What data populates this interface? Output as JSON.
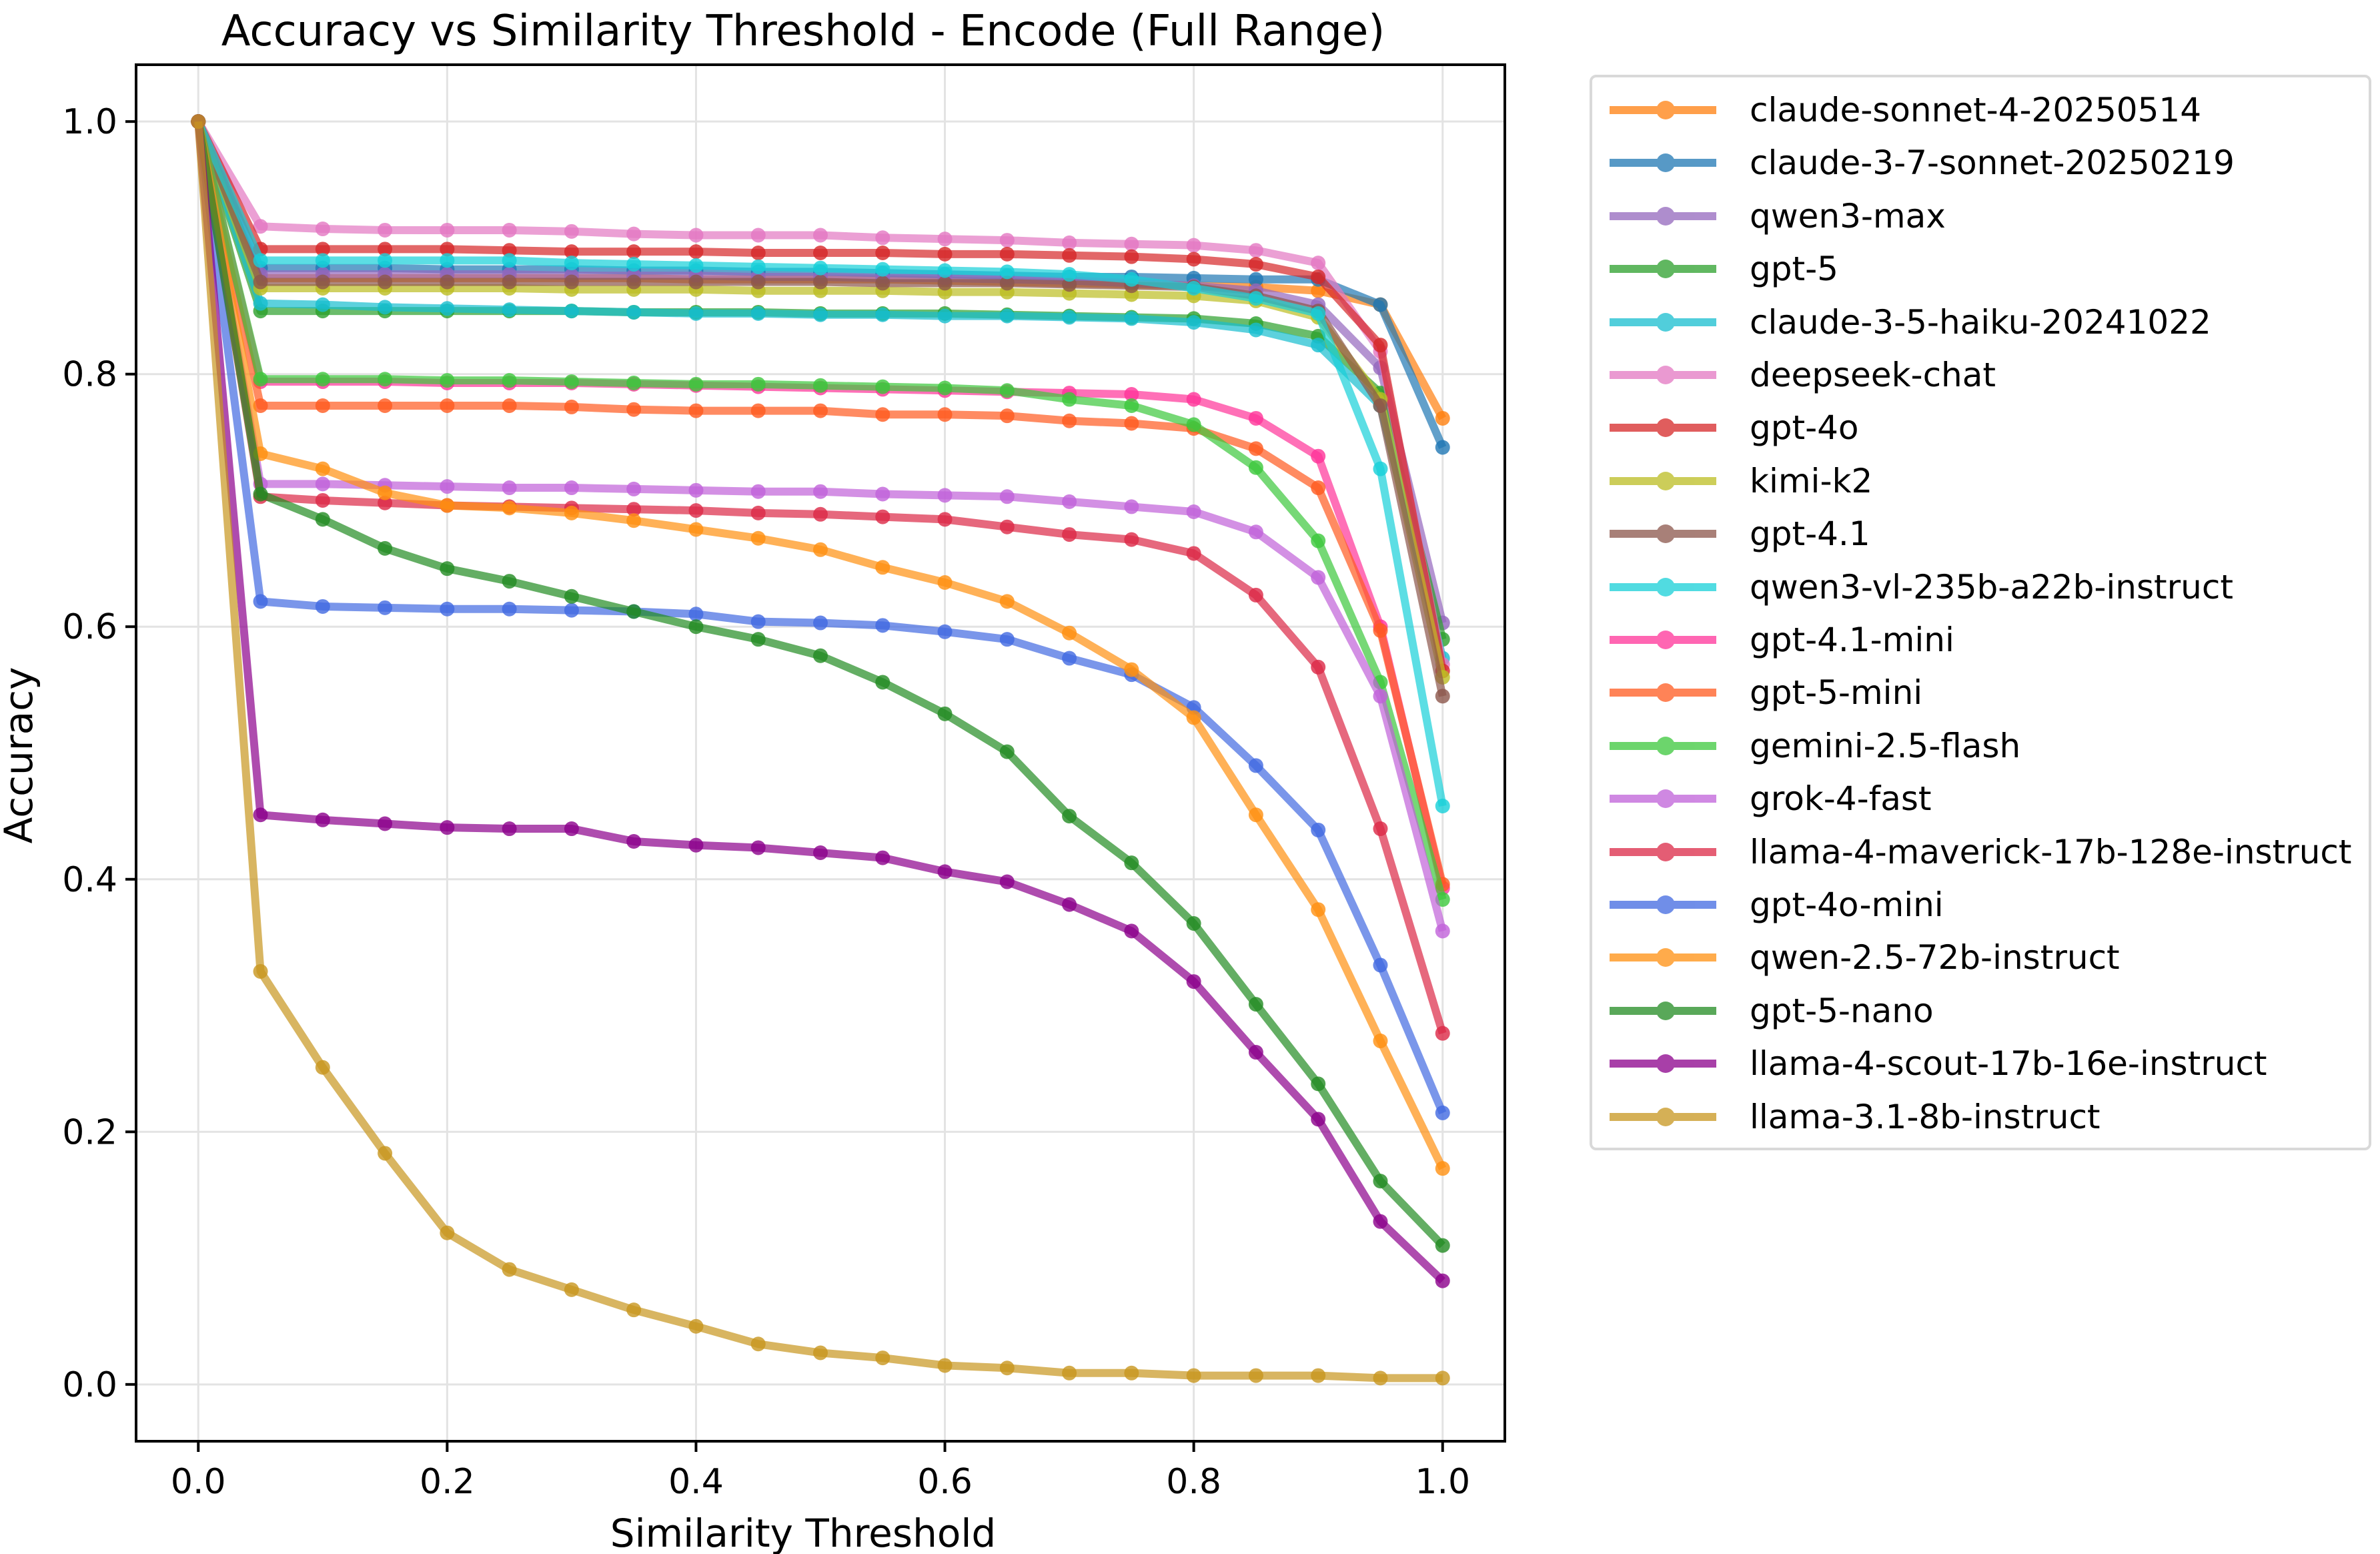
{
  "chart_data": {
    "type": "line",
    "title": "Accuracy vs Similarity Threshold - Encode (Full Range)",
    "xlabel": "Similarity Threshold",
    "ylabel": "Accuracy",
    "xlim": [
      -0.05,
      1.05
    ],
    "ylim": [
      -0.045,
      1.045
    ],
    "grid": true,
    "legend_position": "outside-right",
    "xticks": [
      0.0,
      0.2,
      0.4,
      0.6,
      0.8,
      1.0
    ],
    "xtick_labels": [
      "0.0",
      "0.2",
      "0.4",
      "0.6",
      "0.8",
      "1.0"
    ],
    "yticks": [
      0.0,
      0.2,
      0.4,
      0.6,
      0.8,
      1.0
    ],
    "ytick_labels": [
      "0.0",
      "0.2",
      "0.4",
      "0.6",
      "0.8",
      "1.0"
    ],
    "x": [
      0.0,
      0.05,
      0.1,
      0.15,
      0.2,
      0.25,
      0.3,
      0.35,
      0.4,
      0.45,
      0.5,
      0.55,
      0.6,
      0.65,
      0.7,
      0.75,
      0.8,
      0.85,
      0.9,
      0.95,
      1.0
    ],
    "series": [
      {
        "name": "claude-sonnet-4-20250514",
        "color": "#ff7f0e",
        "values": [
          1.0,
          0.876,
          0.876,
          0.876,
          0.876,
          0.876,
          0.876,
          0.876,
          0.875,
          0.875,
          0.875,
          0.875,
          0.874,
          0.873,
          0.872,
          0.871,
          0.87,
          0.869,
          0.866,
          0.855,
          0.765
        ]
      },
      {
        "name": "claude-3-7-sonnet-20250219",
        "color": "#1f77b4",
        "values": [
          1.0,
          0.884,
          0.884,
          0.884,
          0.883,
          0.883,
          0.883,
          0.882,
          0.882,
          0.881,
          0.881,
          0.88,
          0.879,
          0.878,
          0.877,
          0.877,
          0.876,
          0.875,
          0.875,
          0.855,
          0.742
        ]
      },
      {
        "name": "qwen3-max",
        "color": "#9467bd",
        "values": [
          1.0,
          0.879,
          0.879,
          0.879,
          0.879,
          0.879,
          0.878,
          0.878,
          0.878,
          0.877,
          0.877,
          0.876,
          0.876,
          0.875,
          0.874,
          0.872,
          0.87,
          0.866,
          0.855,
          0.805,
          0.603
        ]
      },
      {
        "name": "gpt-5",
        "color": "#2ca02c",
        "values": [
          1.0,
          0.85,
          0.85,
          0.85,
          0.85,
          0.85,
          0.85,
          0.849,
          0.849,
          0.849,
          0.848,
          0.848,
          0.848,
          0.847,
          0.846,
          0.845,
          0.844,
          0.84,
          0.83,
          0.785,
          0.59
        ]
      },
      {
        "name": "claude-3-5-haiku-20241022",
        "color": "#17becf",
        "values": [
          1.0,
          0.856,
          0.855,
          0.853,
          0.852,
          0.851,
          0.85,
          0.849,
          0.848,
          0.848,
          0.847,
          0.847,
          0.846,
          0.846,
          0.845,
          0.844,
          0.841,
          0.835,
          0.823,
          0.775,
          0.575
        ]
      },
      {
        "name": "deepseek-chat",
        "color": "#e377c2",
        "values": [
          1.0,
          0.917,
          0.915,
          0.914,
          0.914,
          0.914,
          0.913,
          0.911,
          0.91,
          0.91,
          0.91,
          0.908,
          0.907,
          0.906,
          0.904,
          0.903,
          0.902,
          0.898,
          0.888,
          0.818,
          0.57
        ]
      },
      {
        "name": "gpt-4o",
        "color": "#d62728",
        "values": [
          1.0,
          0.899,
          0.899,
          0.899,
          0.899,
          0.898,
          0.897,
          0.897,
          0.897,
          0.896,
          0.896,
          0.896,
          0.895,
          0.895,
          0.894,
          0.893,
          0.891,
          0.887,
          0.877,
          0.823,
          0.565
        ]
      },
      {
        "name": "kimi-k2",
        "color": "#bcbd22",
        "values": [
          1.0,
          0.868,
          0.868,
          0.868,
          0.868,
          0.868,
          0.867,
          0.867,
          0.867,
          0.866,
          0.866,
          0.866,
          0.865,
          0.865,
          0.864,
          0.863,
          0.862,
          0.858,
          0.845,
          0.78,
          0.56
        ]
      },
      {
        "name": "gpt-4.1",
        "color": "#8c564b",
        "values": [
          1.0,
          0.873,
          0.873,
          0.873,
          0.873,
          0.873,
          0.873,
          0.873,
          0.873,
          0.873,
          0.873,
          0.872,
          0.872,
          0.872,
          0.871,
          0.87,
          0.869,
          0.862,
          0.85,
          0.775,
          0.545
        ]
      },
      {
        "name": "qwen3-vl-235b-a22b-instruct",
        "color": "#17d0d8",
        "values": [
          1.0,
          0.89,
          0.89,
          0.89,
          0.89,
          0.89,
          0.888,
          0.887,
          0.886,
          0.885,
          0.884,
          0.883,
          0.882,
          0.881,
          0.879,
          0.875,
          0.868,
          0.86,
          0.848,
          0.725,
          0.458
        ]
      },
      {
        "name": "gpt-4.1-mini",
        "color": "#ff3399",
        "values": [
          1.0,
          0.794,
          0.794,
          0.794,
          0.793,
          0.793,
          0.793,
          0.792,
          0.791,
          0.79,
          0.789,
          0.788,
          0.787,
          0.786,
          0.785,
          0.784,
          0.78,
          0.765,
          0.735,
          0.6,
          0.393
        ]
      },
      {
        "name": "gpt-5-mini",
        "color": "#ff5a1f",
        "values": [
          1.0,
          0.775,
          0.775,
          0.775,
          0.775,
          0.775,
          0.774,
          0.772,
          0.771,
          0.771,
          0.771,
          0.768,
          0.768,
          0.767,
          0.763,
          0.761,
          0.757,
          0.741,
          0.71,
          0.597,
          0.396
        ]
      },
      {
        "name": "gemini-2.5-flash",
        "color": "#3cc83c",
        "values": [
          1.0,
          0.796,
          0.796,
          0.796,
          0.795,
          0.795,
          0.794,
          0.793,
          0.792,
          0.792,
          0.791,
          0.79,
          0.789,
          0.787,
          0.78,
          0.775,
          0.76,
          0.726,
          0.668,
          0.556,
          0.384
        ]
      },
      {
        "name": "grok-4-fast",
        "color": "#c061d9",
        "values": [
          1.0,
          0.713,
          0.713,
          0.712,
          0.711,
          0.71,
          0.71,
          0.709,
          0.708,
          0.707,
          0.707,
          0.705,
          0.704,
          0.703,
          0.699,
          0.695,
          0.691,
          0.675,
          0.639,
          0.545,
          0.359
        ]
      },
      {
        "name": "llama-4-maverick-17b-128e-instruct",
        "color": "#dc2846",
        "values": [
          1.0,
          0.703,
          0.7,
          0.698,
          0.696,
          0.695,
          0.694,
          0.693,
          0.692,
          0.69,
          0.689,
          0.687,
          0.685,
          0.679,
          0.673,
          0.669,
          0.658,
          0.625,
          0.568,
          0.44,
          0.278
        ]
      },
      {
        "name": "gpt-4o-mini",
        "color": "#4169e1",
        "values": [
          1.0,
          0.62,
          0.616,
          0.615,
          0.614,
          0.614,
          0.613,
          0.612,
          0.61,
          0.604,
          0.603,
          0.601,
          0.596,
          0.59,
          0.575,
          0.562,
          0.536,
          0.49,
          0.439,
          0.332,
          0.215
        ]
      },
      {
        "name": "qwen-2.5-72b-instruct",
        "color": "#ff9010",
        "values": [
          1.0,
          0.737,
          0.725,
          0.706,
          0.696,
          0.694,
          0.69,
          0.684,
          0.677,
          0.67,
          0.661,
          0.647,
          0.635,
          0.62,
          0.595,
          0.566,
          0.528,
          0.451,
          0.376,
          0.272,
          0.171
        ]
      },
      {
        "name": "gpt-5-nano",
        "color": "#228b22",
        "values": [
          1.0,
          0.705,
          0.685,
          0.662,
          0.646,
          0.636,
          0.624,
          0.612,
          0.6,
          0.59,
          0.577,
          0.556,
          0.531,
          0.501,
          0.45,
          0.413,
          0.365,
          0.301,
          0.238,
          0.161,
          0.11
        ]
      },
      {
        "name": "llama-4-scout-17b-16e-instruct",
        "color": "#8b008b",
        "values": [
          1.0,
          0.451,
          0.447,
          0.444,
          0.441,
          0.44,
          0.44,
          0.43,
          0.427,
          0.425,
          0.421,
          0.417,
          0.406,
          0.398,
          0.38,
          0.359,
          0.319,
          0.263,
          0.21,
          0.129,
          0.082
        ]
      },
      {
        "name": "llama-3.1-8b-instruct",
        "color": "#c8961e",
        "values": [
          1.0,
          0.327,
          0.251,
          0.183,
          0.12,
          0.091,
          0.075,
          0.059,
          0.046,
          0.032,
          0.025,
          0.021,
          0.015,
          0.013,
          0.009,
          0.009,
          0.007,
          0.007,
          0.007,
          0.005,
          0.005
        ]
      }
    ]
  }
}
